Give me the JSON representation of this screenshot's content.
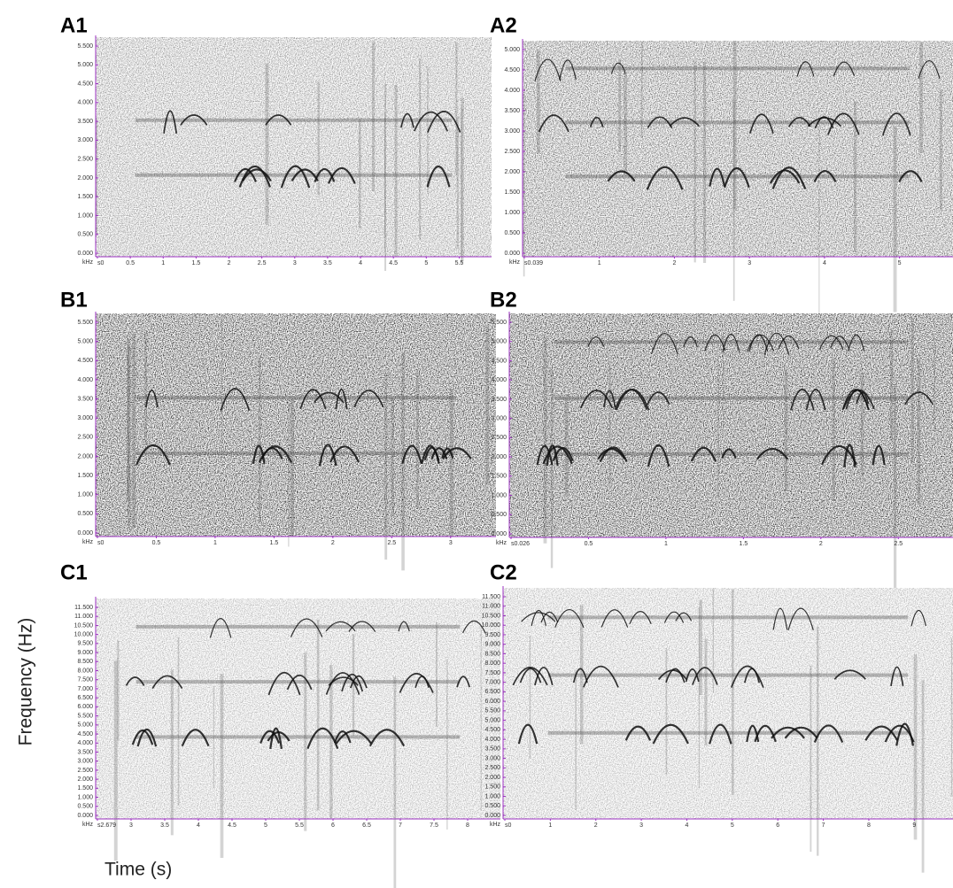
{
  "panels": [
    {
      "label": "A1",
      "y_unit": "kHz",
      "yticks": [
        "0.000",
        "0.500",
        "1.000",
        "1.500",
        "2.000",
        "2.500",
        "3.000",
        "3.500",
        "4.000",
        "4.500",
        "5.000",
        "5.500"
      ],
      "xticks": [
        "s0",
        "0.5",
        "1",
        "1.5",
        "2",
        "2.5",
        "3",
        "3.5",
        "4",
        "4.5",
        "5",
        "5.5"
      ]
    },
    {
      "label": "A2",
      "y_unit": "kHz",
      "yticks": [
        "0.000",
        "0.500",
        "1.000",
        "1.500",
        "2.000",
        "2.500",
        "3.000",
        "3.500",
        "4.000",
        "4.500",
        "5.000"
      ],
      "xticks": [
        "s0.039",
        "1",
        "2",
        "3",
        "4",
        "5"
      ]
    },
    {
      "label": "B1",
      "y_unit": "kHz",
      "yticks": [
        "0.000",
        "0.500",
        "1.000",
        "1.500",
        "2.000",
        "2.500",
        "3.000",
        "3.500",
        "4.000",
        "4.500",
        "5.000",
        "5.500"
      ],
      "xticks": [
        "s0",
        "0.5",
        "1",
        "1.5",
        "2",
        "2.5",
        "3"
      ]
    },
    {
      "label": "B2",
      "y_unit": "kHz",
      "yticks": [
        "0.000",
        "0.500",
        "1.000",
        "1.500",
        "2.000",
        "2.500",
        "3.000",
        "3.500",
        "4.000",
        "4.500",
        "5.000",
        "5.500"
      ],
      "xticks": [
        "s0.026",
        "0.5",
        "1",
        "1.5",
        "2",
        "2.5"
      ]
    },
    {
      "label": "C1",
      "y_unit": "kHz",
      "yticks": [
        "0.000",
        "0.500",
        "1.000",
        "1.500",
        "2.000",
        "2.500",
        "3.000",
        "3.500",
        "4.000",
        "4.500",
        "5.000",
        "5.500",
        "6.000",
        "6.500",
        "7.000",
        "7.500",
        "8.000",
        "8.500",
        "9.000",
        "9.500",
        "10.000",
        "10.500",
        "11.000",
        "11.500"
      ],
      "xticks": [
        "s2.679",
        "3",
        "3.5",
        "4",
        "4.5",
        "5",
        "5.5",
        "6",
        "6.5",
        "7",
        "7.5",
        "8"
      ]
    },
    {
      "label": "C2",
      "y_unit": "kHz",
      "yticks": [
        "0.000",
        "0.500",
        "1.000",
        "1.500",
        "2.000",
        "2.500",
        "3.000",
        "3.500",
        "4.000",
        "4.500",
        "5.000",
        "5.500",
        "6.000",
        "6.500",
        "7.000",
        "7.500",
        "8.000",
        "8.500",
        "9.000",
        "9.500",
        "10.000",
        "10.500",
        "11.000",
        "11.500"
      ],
      "xticks": [
        "s0",
        "1",
        "2",
        "3",
        "4",
        "5",
        "6",
        "7",
        "8",
        "9"
      ]
    }
  ],
  "y_axis_label": "Frequency (Hz)",
  "x_axis_label": "Time (s)"
}
